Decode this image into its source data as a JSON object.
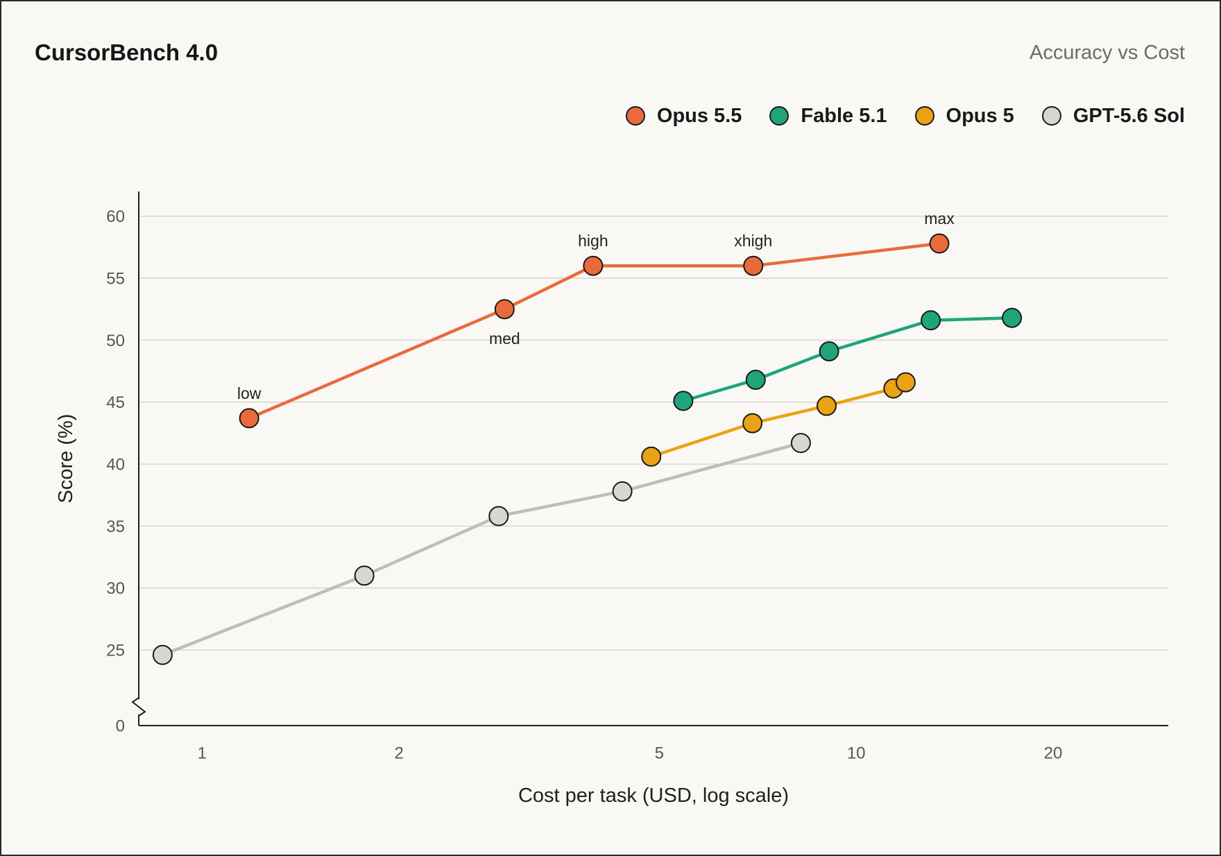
{
  "chart_data": {
    "type": "line",
    "title": "CursorBench 4.0",
    "subtitle": "Accuracy vs Cost",
    "xlabel": "Cost per task (USD, log scale)",
    "ylabel": "Score (%)",
    "x_scale": "log",
    "xlim": [
      0.8,
      30
    ],
    "ylim": [
      0,
      62
    ],
    "y_axis_break": [
      0,
      25
    ],
    "xticks": [
      1,
      2,
      5,
      10,
      20
    ],
    "yticks": [
      0,
      25,
      30,
      35,
      40,
      45,
      50,
      55,
      60
    ],
    "grid": "horizontal",
    "legend": "top-right",
    "series": [
      {
        "name": "Opus 5.5",
        "color": "#E96B3C",
        "line_color": "#E96B3C",
        "points": [
          {
            "x": 1.18,
            "y": 43.7,
            "label": "low",
            "label_pos": "above"
          },
          {
            "x": 2.9,
            "y": 52.5,
            "label": "med",
            "label_pos": "below"
          },
          {
            "x": 3.96,
            "y": 56.0,
            "label": "high",
            "label_pos": "above"
          },
          {
            "x": 6.96,
            "y": 56.0,
            "label": "xhigh",
            "label_pos": "above"
          },
          {
            "x": 13.4,
            "y": 57.8,
            "label": "max",
            "label_pos": "above"
          }
        ]
      },
      {
        "name": "Fable 5.1",
        "color": "#1FA57B",
        "line_color": "#1FA57B",
        "points": [
          {
            "x": 5.44,
            "y": 45.1
          },
          {
            "x": 7.02,
            "y": 46.8
          },
          {
            "x": 9.09,
            "y": 49.1
          },
          {
            "x": 13.0,
            "y": 51.6
          },
          {
            "x": 17.3,
            "y": 51.8
          }
        ]
      },
      {
        "name": "Opus 5",
        "color": "#EBA214",
        "line_color": "#EBA214",
        "points": [
          {
            "x": 4.86,
            "y": 40.6
          },
          {
            "x": 6.94,
            "y": 43.3
          },
          {
            "x": 9.01,
            "y": 44.7
          },
          {
            "x": 11.4,
            "y": 46.1
          },
          {
            "x": 11.9,
            "y": 46.6
          }
        ]
      },
      {
        "name": "GPT-5.6 Sol",
        "color": "#D7D6D0",
        "line_color": "#BFBEB6",
        "points": [
          {
            "x": 0.87,
            "y": 24.6
          },
          {
            "x": 1.77,
            "y": 31.0
          },
          {
            "x": 2.84,
            "y": 35.8
          },
          {
            "x": 4.39,
            "y": 37.8
          },
          {
            "x": 8.23,
            "y": 41.7
          }
        ]
      }
    ]
  }
}
